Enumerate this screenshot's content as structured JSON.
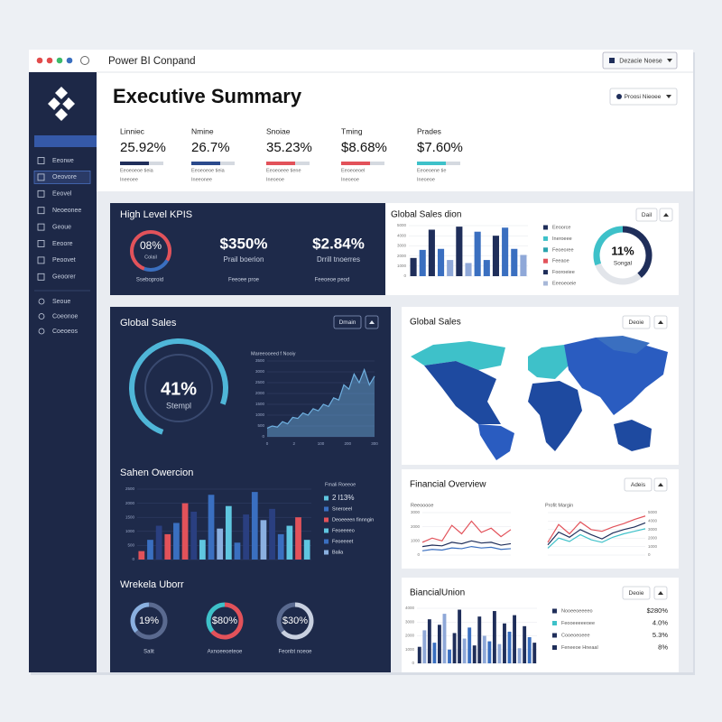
{
  "window": {
    "title": "Power BI Conpand",
    "menu": "Dezacie Noese"
  },
  "sidebar": {
    "items": [
      "Eeorwe",
      "Oeovore",
      "Eeovel",
      "Neoeonee",
      "Geoue",
      "Eeoore",
      "Peoovet",
      "Geoorer"
    ],
    "tools": [
      "Seoue",
      "Coeonoe",
      "Coeoeos"
    ]
  },
  "header": {
    "title": "Executive Summary",
    "filter": "Proosi Nieoee",
    "kpis": [
      {
        "label": "Linniec",
        "value": "25.92%",
        "notes": [
          "Eeoeoeoe tieia",
          "Ineeoee"
        ],
        "color": "#1f2e5a"
      },
      {
        "label": "Nmine",
        "value": "26.7%",
        "notes": [
          "Eeoeoeoe tieia",
          "Ineeonee"
        ],
        "color": "#2b4a8c"
      },
      {
        "label": "Snoiae",
        "value": "35.23%",
        "notes": [
          "Eeoeoeee tiene",
          "Ineoeoe"
        ],
        "color": "#e2525a"
      },
      {
        "label": "Tming",
        "value": "$8.68%",
        "notes": [
          "Eeoeoeoel",
          "Ineoeoe"
        ],
        "color": "#e2525a"
      },
      {
        "label": "Prades",
        "value": "$7.60%",
        "notes": [
          "Eeoeoene tie",
          "Ineoeoe"
        ],
        "color": "#3ec1c9"
      }
    ]
  },
  "high_level": {
    "title": "High Level KPIS",
    "ring": "08%",
    "ring_label": "Colail",
    "items": [
      {
        "value": "$350%",
        "label": "Prail boerion"
      },
      {
        "value": "$2.84%",
        "label": "Drrill tnoerres"
      }
    ],
    "footer": [
      "Sseboproid",
      "Feeoee proe",
      "Feeoeoe peod"
    ]
  },
  "sales_dion": {
    "title": "Global Sales dion",
    "button": "Dail",
    "chart": {
      "type": "bar",
      "ylim": [
        0,
        5000
      ],
      "yticks": [
        0,
        1000,
        2000,
        3000,
        4000,
        5000
      ],
      "grid": true,
      "values": [
        1800,
        2600,
        4600,
        2700,
        1600,
        4900,
        1300,
        4400,
        1600,
        4000,
        4800,
        2700,
        2100
      ],
      "colors": [
        "#1f2e5a",
        "#3a6fc0",
        "#1f2e5a",
        "#3a6fc0",
        "#8fa8d8",
        "#1f2e5a",
        "#8fa8d8",
        "#3a6fc0",
        "#3a6fc0",
        "#1f2e5a",
        "#3a6fc0",
        "#3a6fc0",
        "#8fa8d8"
      ]
    },
    "legend": [
      {
        "name": "Eeoorce",
        "color": "#1f2e5a"
      },
      {
        "name": "Ineroeee",
        "color": "#3ec1c9"
      },
      {
        "name": "Feoeoree",
        "color": "#2aa3ad"
      },
      {
        "name": "Feeaoe",
        "color": "#e2525a"
      },
      {
        "name": "Fooroeiee",
        "color": "#1f2e5a"
      },
      {
        "name": "Eeeoeoeie",
        "color": "#a8b8d8"
      }
    ],
    "donut": "11%",
    "donut_label": "Songal"
  },
  "global_sales": {
    "title": "Global Sales",
    "button": "Dmain",
    "gauge": "41%",
    "gauge_label": "Stempl",
    "trend": {
      "type": "area",
      "title": "Mareeooeed f Nooiy",
      "ylim": [
        0,
        3500
      ],
      "yticks": [
        0,
        500,
        1000,
        1500,
        2000,
        2500,
        3000,
        3500
      ],
      "grid": true,
      "xlabels": [
        "0",
        "2",
        "100",
        "200",
        "300"
      ],
      "series": [
        {
          "color": "#6fb0e0",
          "values": [
            400,
            500,
            450,
            700,
            600,
            900,
            850,
            1100,
            1000,
            1300,
            1200,
            1500,
            1400,
            1800,
            1700,
            2400,
            2200,
            2900,
            2500,
            3100,
            2400,
            2800
          ]
        }
      ]
    }
  },
  "operation": {
    "title": "Sahen Owercion",
    "chart": {
      "type": "bar",
      "ylim": [
        0,
        2500
      ],
      "yticks": [
        0,
        500,
        1000,
        1500,
        2000,
        2500
      ],
      "grid": true,
      "values": [
        300,
        700,
        1200,
        900,
        1300,
        2000,
        1700,
        700,
        2300,
        1100,
        1900,
        600,
        1600,
        2400,
        1400,
        1800,
        900,
        1200,
        1500,
        700
      ],
      "colors": [
        "#e2525a",
        "#3a6fc0",
        "#2a3f80",
        "#e2525a",
        "#3a6fc0",
        "#e2525a",
        "#2a3f80",
        "#5fc6e0",
        "#3a6fc0",
        "#8ab0e0",
        "#5fc6e0",
        "#3a6fc0",
        "#2a3f80",
        "#3a6fc0",
        "#8ab0e0",
        "#2a3f80",
        "#3a6fc0",
        "#5fc6e0",
        "#e2525a",
        "#5fc6e0"
      ]
    },
    "legend_title": "Fmali Roeeoe",
    "legend": [
      {
        "name": "2 l13%",
        "color": "#5fc6e0"
      },
      {
        "name": "Sneroeel",
        "color": "#3a6fc0"
      },
      {
        "name": "Deoeeeen finnngin",
        "color": "#e2525a"
      },
      {
        "name": "Feoeeeeo",
        "color": "#5fc6e0"
      },
      {
        "name": "Feoeeeet",
        "color": "#3a6fc0"
      },
      {
        "name": "Balia",
        "color": "#8ab0e0"
      }
    ]
  },
  "weekly": {
    "title": "Wrekela Uborr",
    "rings": [
      {
        "value": "19%",
        "label": "Salit",
        "colors": [
          "#5a6a90",
          "#8ab0e0"
        ]
      },
      {
        "value": "$80%",
        "label": "Axnoeeoeteoe",
        "colors": [
          "#e2525a",
          "#3ec1c9"
        ]
      },
      {
        "value": "$30%",
        "label": "Feonbt noeoe",
        "colors": [
          "#c8d0e0",
          "#5a6a90"
        ]
      }
    ]
  },
  "map": {
    "title": "Global Sales",
    "button": "Deoie"
  },
  "financial": {
    "title": "Financial Overview",
    "button": "Adeis",
    "left": {
      "type": "line",
      "title": "Reeooooe",
      "ylim": [
        0,
        3000
      ],
      "yticks": [
        0,
        1000,
        2000,
        3000
      ],
      "grid": true,
      "series": [
        {
          "color": "#e2525a",
          "values": [
            900,
            1200,
            1000,
            2100,
            1500,
            2400,
            1600,
            1900,
            1300,
            1800
          ]
        },
        {
          "color": "#1f2e5a",
          "values": [
            600,
            700,
            650,
            900,
            800,
            1000,
            850,
            900,
            700,
            800
          ]
        },
        {
          "color": "#3a6fc0",
          "values": [
            300,
            400,
            350,
            500,
            450,
            600,
            500,
            550,
            400,
            450
          ]
        }
      ]
    },
    "right": {
      "type": "line",
      "title": "Profit Margin",
      "ylim": [
        0,
        5000
      ],
      "yticks": [
        0,
        1000,
        2000,
        3000,
        4000,
        5000
      ],
      "grid": true,
      "series": [
        {
          "color": "#e2525a",
          "values": [
            1500,
            3600,
            2500,
            3900,
            3000,
            2800,
            3300,
            3700,
            4200,
            4600
          ]
        },
        {
          "color": "#1f2e5a",
          "values": [
            1200,
            2700,
            2100,
            3000,
            2400,
            1900,
            2600,
            3000,
            3300,
            3800
          ]
        },
        {
          "color": "#3ec1c9",
          "values": [
            800,
            2000,
            1600,
            2400,
            1800,
            1500,
            2100,
            2500,
            2800,
            3100
          ]
        }
      ]
    }
  },
  "union": {
    "title": "BiancialUnion",
    "button": "Deoie",
    "chart": {
      "type": "bar",
      "ylim": [
        0,
        4000
      ],
      "yticks": [
        0,
        1000,
        2000,
        3000,
        4000
      ],
      "grid": true,
      "values": [
        1200,
        2400,
        3200,
        1500,
        2800,
        3600,
        1000,
        2200,
        3900,
        1800,
        2600,
        1300,
        3400,
        2000,
        1600,
        3800,
        1400,
        2900,
        2300,
        3500,
        1100,
        2700,
        1900,
        1500
      ],
      "colors": [
        "#1f2e5a",
        "#8fa8d8",
        "#1f2e5a",
        "#3a6fc0",
        "#1f2e5a",
        "#8fa8d8",
        "#3a6fc0",
        "#1f2e5a",
        "#1f2e5a",
        "#8fa8d8",
        "#3a6fc0",
        "#1f2e5a",
        "#1f2e5a",
        "#8fa8d8",
        "#3a6fc0",
        "#1f2e5a",
        "#8fa8d8",
        "#1f2e5a",
        "#3a6fc0",
        "#1f2e5a",
        "#8fa8d8",
        "#1f2e5a",
        "#3a6fc0",
        "#1f2e5a"
      ]
    },
    "legend": [
      {
        "name": "Nooeeoeeeeo",
        "value": "$280%",
        "color": "#1f2e5a"
      },
      {
        "name": "Feooeeeeeoee",
        "value": "4.0%",
        "color": "#3ec1c9"
      },
      {
        "name": "Cooeoeoeee",
        "value": "5.3%",
        "color": "#1f2e5a"
      },
      {
        "name": "Feneeoe Hneaal",
        "value": "8%",
        "color": "#1f2e5a"
      }
    ]
  }
}
